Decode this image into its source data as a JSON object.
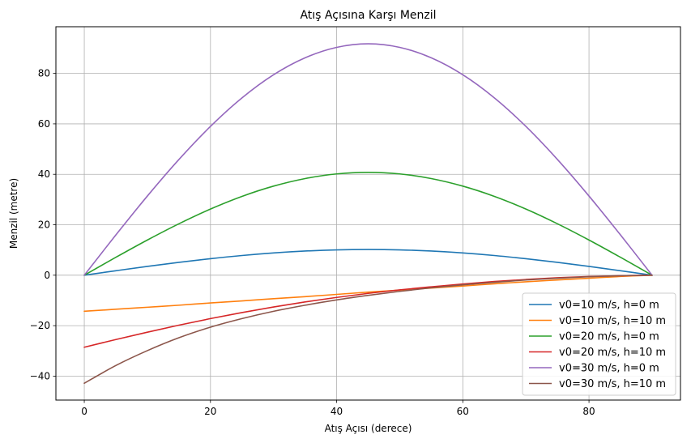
{
  "chart_data": {
    "type": "line",
    "title": "Atış Açısına Karşı Menzil",
    "xlabel": "Atış Açısı (derece)",
    "ylabel": "Menzil (metre)",
    "xlim": [
      -4.5,
      94.5
    ],
    "ylim": [
      -49.5,
      98.5
    ],
    "xticks": [
      0,
      20,
      40,
      60,
      80
    ],
    "yticks": [
      -40,
      -20,
      0,
      20,
      40,
      60,
      80
    ],
    "grid": true,
    "legend_position": "lower-right",
    "x_samples": [
      0,
      5,
      10,
      15,
      20,
      25,
      30,
      35,
      40,
      45,
      50,
      55,
      60,
      65,
      70,
      75,
      80,
      85,
      90
    ],
    "series": [
      {
        "name": "v0=10 m/s, h=0 m",
        "color": "#1f77b4",
        "values": [
          0,
          1.77,
          3.49,
          5.1,
          6.55,
          7.81,
          8.83,
          9.58,
          10.04,
          10.19,
          10.04,
          9.58,
          8.83,
          7.81,
          6.55,
          5.1,
          3.49,
          1.77,
          0
        ]
      },
      {
        "name": "v0=10 m/s, h=10 m",
        "color": "#ff7f0e",
        "values": [
          -14.28,
          -13.5,
          -12.7,
          -11.9,
          -11.0,
          -10.2,
          -9.3,
          -8.5,
          -7.6,
          -6.7,
          -5.9,
          -5.1,
          -4.3,
          -3.4,
          -2.6,
          -1.9,
          -1.2,
          -0.5,
          0
        ]
      },
      {
        "name": "v0=20 m/s, h=0 m",
        "color": "#2ca02c",
        "values": [
          0,
          7.09,
          13.95,
          20.39,
          26.22,
          31.25,
          35.31,
          38.31,
          40.15,
          40.77,
          40.15,
          38.31,
          35.31,
          31.25,
          26.22,
          20.39,
          13.95,
          7.09,
          0
        ]
      },
      {
        "name": "v0=20 m/s, h=10 m",
        "color": "#d62728",
        "values": [
          -28.56,
          -25.5,
          -22.6,
          -19.8,
          -17.2,
          -14.8,
          -12.6,
          -10.6,
          -8.8,
          -7.2,
          -5.8,
          -4.6,
          -3.5,
          -2.5,
          -1.7,
          -1.0,
          -0.5,
          -0.2,
          0
        ]
      },
      {
        "name": "v0=30 m/s, h=0 m",
        "color": "#9467bd",
        "values": [
          0,
          15.94,
          31.38,
          45.87,
          58.98,
          70.3,
          79.46,
          86.18,
          90.32,
          91.74,
          90.32,
          86.18,
          79.46,
          70.3,
          58.98,
          45.87,
          31.38,
          15.94,
          0
        ]
      },
      {
        "name": "v0=30 m/s, h=10 m",
        "color": "#8c564b",
        "values": [
          -42.84,
          -35.8,
          -29.9,
          -24.8,
          -20.6,
          -17.2,
          -14.3,
          -11.9,
          -9.8,
          -8.0,
          -6.4,
          -5.0,
          -3.8,
          -2.8,
          -1.9,
          -1.2,
          -0.6,
          -0.2,
          0
        ]
      }
    ]
  }
}
